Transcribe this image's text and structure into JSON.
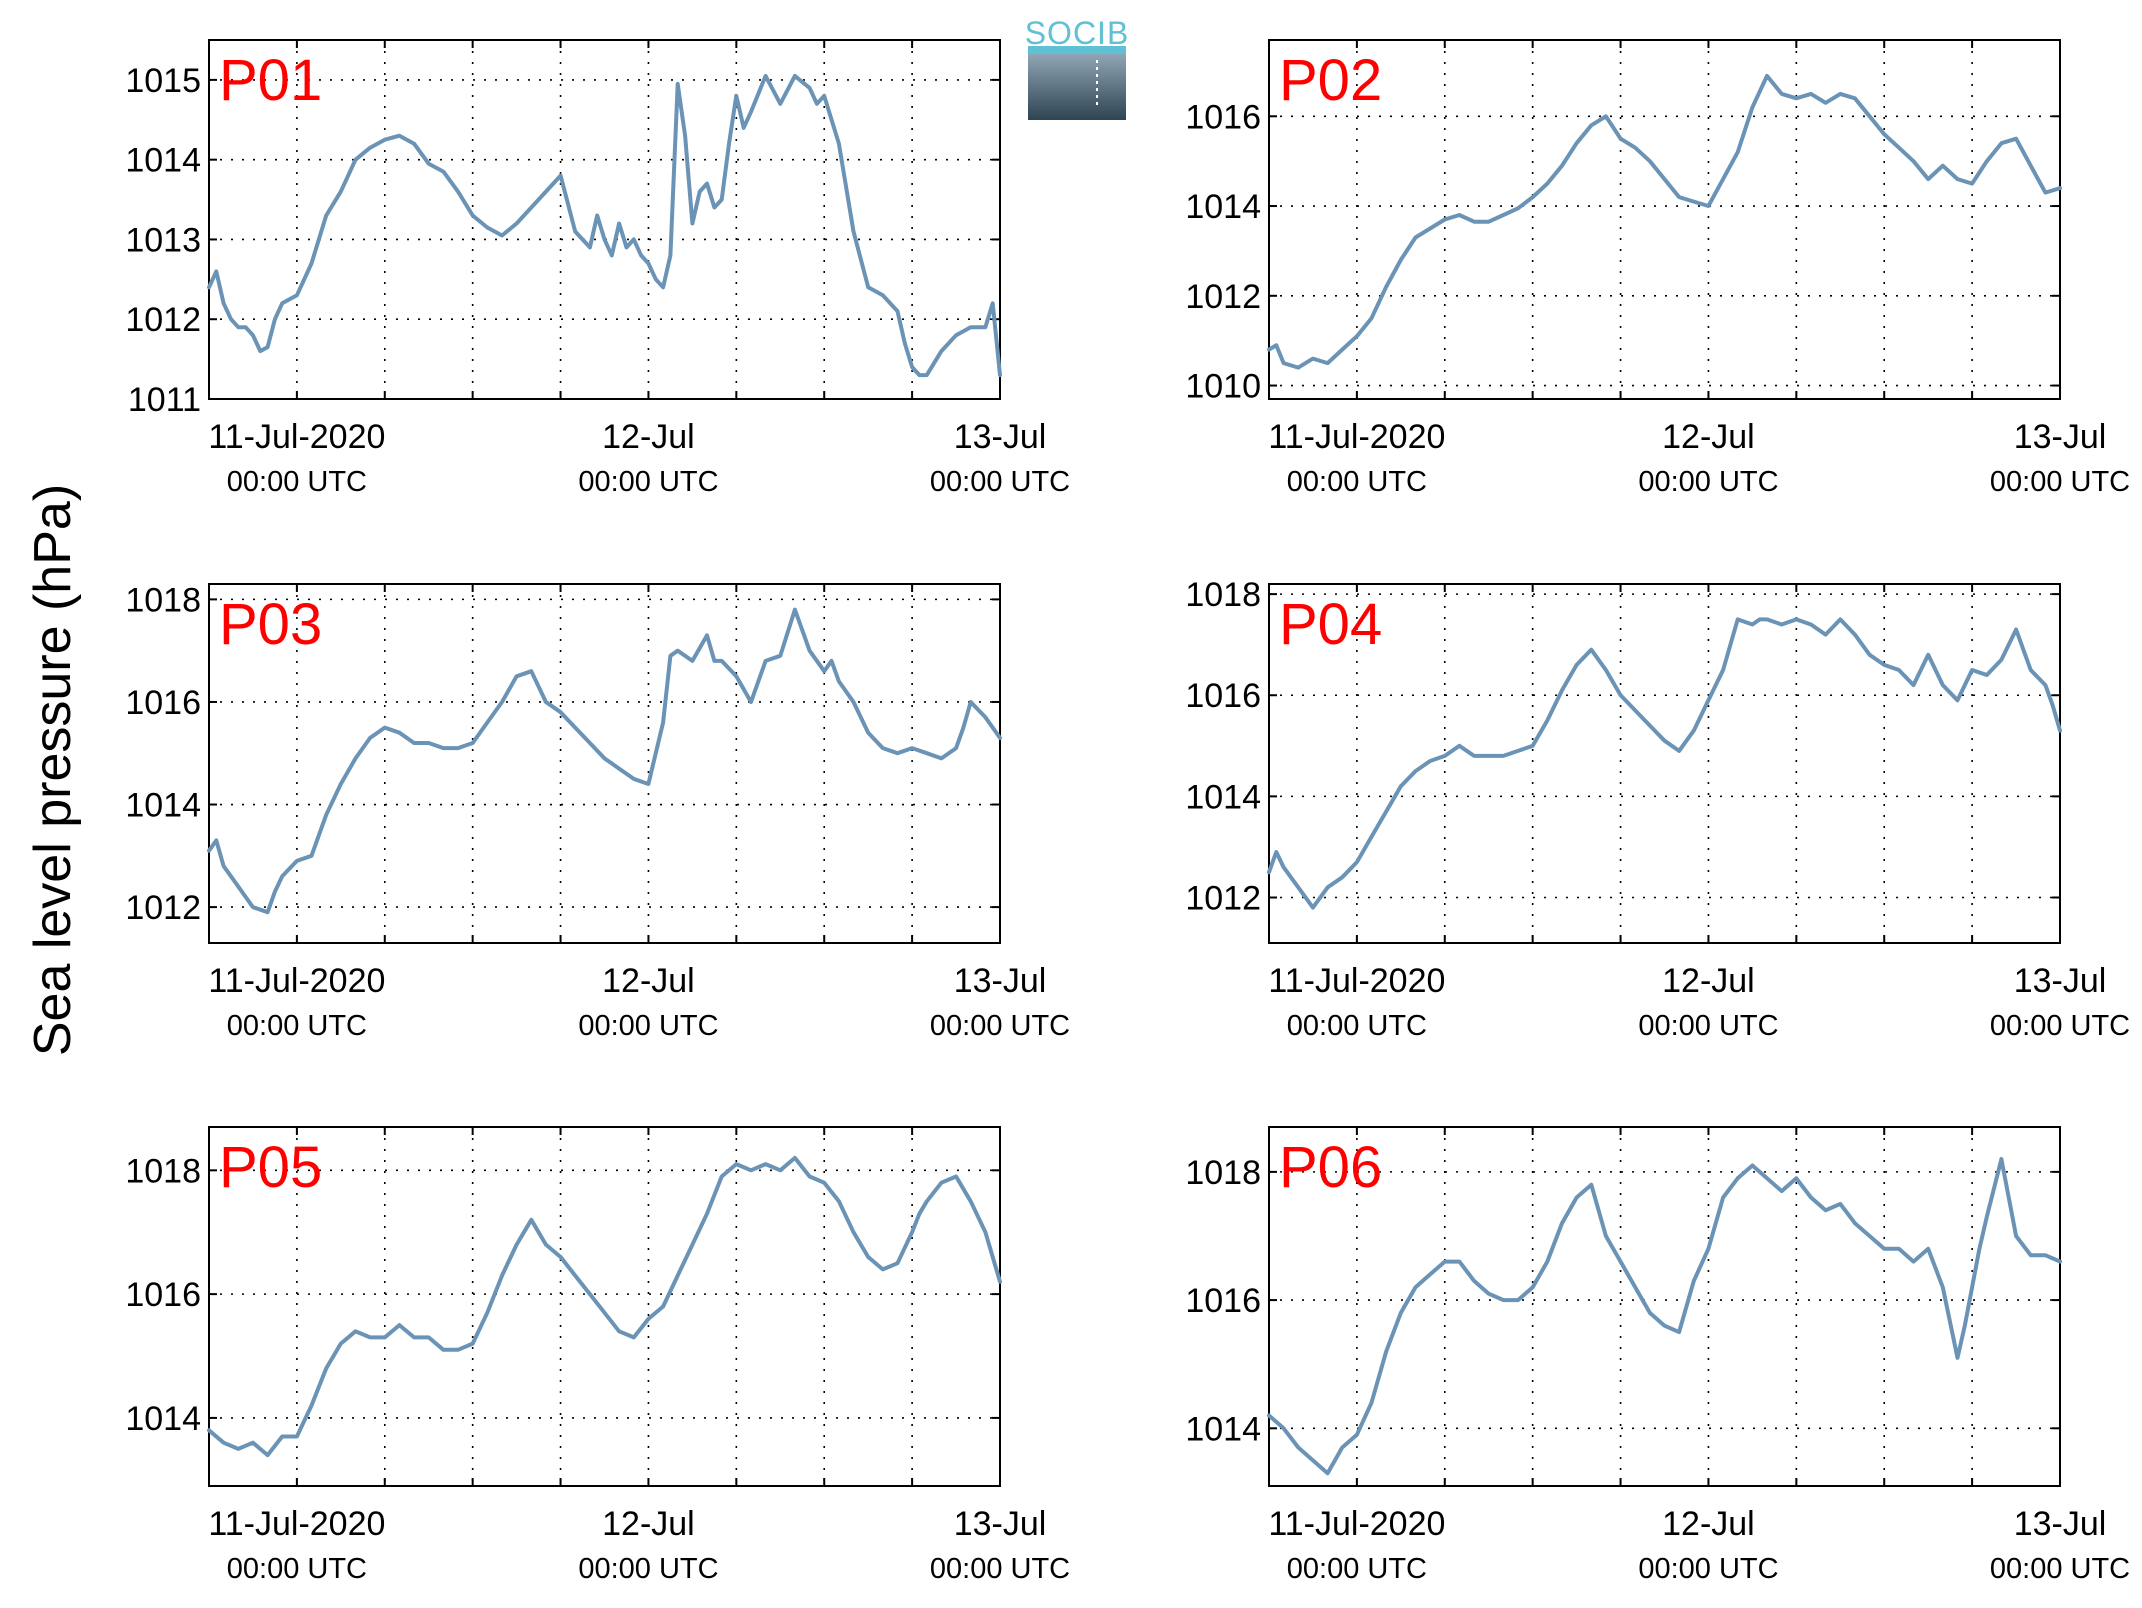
{
  "figure": {
    "ylabel": "Sea level pressure (hPa)",
    "logo_text": "SOCIB"
  },
  "colors": {
    "series": "#6b93b5",
    "panel_label": "#ff0000",
    "axis": "#000000",
    "grid": "#000000"
  },
  "chart_data": [
    {
      "type": "line",
      "panel_label": "P01",
      "x_unit": "hours since 11-Jul-2020 00:00 UTC",
      "xlim": [
        -6,
        48
      ],
      "ylim": [
        1011,
        1015.5
      ],
      "yticks": [
        1011,
        1012,
        1013,
        1014,
        1015
      ],
      "xticks": [
        0,
        24,
        48
      ],
      "xticklabels": [
        [
          "11-Jul-2020",
          "00:00 UTC"
        ],
        [
          "12-Jul",
          "00:00 UTC"
        ],
        [
          "13-Jul",
          "00:00 UTC"
        ]
      ],
      "grid": true,
      "x": [
        -6,
        -5.5,
        -5,
        -4.5,
        -4,
        -3.5,
        -3,
        -2.5,
        -2,
        -1.5,
        -1,
        0,
        1,
        2,
        3,
        4,
        5,
        6,
        7,
        8,
        9,
        10,
        11,
        12,
        13,
        14,
        15,
        16,
        17,
        18,
        19,
        20,
        20.5,
        21,
        21.5,
        22,
        22.5,
        23,
        23.5,
        24,
        24.5,
        25,
        25.5,
        26,
        26.5,
        27,
        27.5,
        28,
        28.5,
        29,
        29.5,
        30,
        30.5,
        31,
        32,
        33,
        34,
        35,
        35.5,
        36,
        37,
        38,
        39,
        40,
        41,
        41.5,
        42,
        42.5,
        43,
        44,
        45,
        46,
        47,
        47.5,
        48
      ],
      "y": [
        1012.4,
        1012.6,
        1012.2,
        1012,
        1011.9,
        1011.9,
        1011.8,
        1011.6,
        1011.65,
        1012,
        1012.2,
        1012.3,
        1012.7,
        1013.3,
        1013.6,
        1014,
        1014.15,
        1014.25,
        1014.3,
        1014.2,
        1013.95,
        1013.85,
        1013.6,
        1013.3,
        1013.15,
        1013.05,
        1013.2,
        1013.4,
        1013.6,
        1013.8,
        1013.1,
        1012.9,
        1013.3,
        1013.0,
        1012.8,
        1013.2,
        1012.9,
        1013.0,
        1012.8,
        1012.7,
        1012.5,
        1012.4,
        1012.8,
        1014.95,
        1014.3,
        1013.2,
        1013.6,
        1013.7,
        1013.4,
        1013.5,
        1014.2,
        1014.8,
        1014.4,
        1014.6,
        1015.05,
        1014.7,
        1015.05,
        1014.9,
        1014.7,
        1014.8,
        1014.2,
        1013.1,
        1012.4,
        1012.3,
        1012.1,
        1011.7,
        1011.4,
        1011.3,
        1011.3,
        1011.6,
        1011.8,
        1011.9,
        1011.9,
        1012.2,
        1011.3
      ]
    },
    {
      "type": "line",
      "panel_label": "P02",
      "x_unit": "hours since 11-Jul-2020 00:00 UTC",
      "xlim": [
        -6,
        48
      ],
      "ylim": [
        1009.7,
        1017.7
      ],
      "yticks": [
        1010,
        1012,
        1014,
        1016
      ],
      "xticks": [
        0,
        24,
        48
      ],
      "xticklabels": [
        [
          "11-Jul-2020",
          "00:00 UTC"
        ],
        [
          "12-Jul",
          "00:00 UTC"
        ],
        [
          "13-Jul",
          "00:00 UTC"
        ]
      ],
      "grid": true,
      "x": [
        -6,
        -5.5,
        -5,
        -4,
        -3,
        -2,
        -1,
        0,
        1,
        2,
        3,
        4,
        5,
        6,
        7,
        8,
        9,
        10,
        11,
        12,
        13,
        14,
        15,
        16,
        17,
        18,
        19,
        20,
        21,
        22,
        23,
        24,
        25,
        26,
        27,
        28,
        29,
        30,
        31,
        32,
        33,
        34,
        35,
        36,
        37,
        38,
        39,
        40,
        41,
        42,
        43,
        44,
        45,
        46,
        47,
        48
      ],
      "y": [
        1010.8,
        1010.9,
        1010.5,
        1010.4,
        1010.6,
        1010.5,
        1010.8,
        1011.1,
        1011.5,
        1012.2,
        1012.8,
        1013.3,
        1013.5,
        1013.7,
        1013.8,
        1013.65,
        1013.65,
        1013.8,
        1013.95,
        1014.2,
        1014.5,
        1014.9,
        1015.4,
        1015.8,
        1016.0,
        1015.5,
        1015.3,
        1015.0,
        1014.6,
        1014.2,
        1014.1,
        1014.0,
        1014.6,
        1015.2,
        1016.2,
        1016.9,
        1016.5,
        1016.4,
        1016.5,
        1016.3,
        1016.5,
        1016.4,
        1016.0,
        1015.6,
        1015.3,
        1015.0,
        1014.6,
        1014.9,
        1014.6,
        1014.5,
        1015.0,
        1015.4,
        1015.5,
        1014.9,
        1014.3,
        1014.4
      ]
    },
    {
      "type": "line",
      "panel_label": "P03",
      "x_unit": "hours since 11-Jul-2020 00:00 UTC",
      "xlim": [
        -6,
        48
      ],
      "ylim": [
        1011.3,
        1018.3
      ],
      "yticks": [
        1012,
        1014,
        1016,
        1018
      ],
      "xticks": [
        0,
        24,
        48
      ],
      "xticklabels": [
        [
          "11-Jul-2020",
          "00:00 UTC"
        ],
        [
          "12-Jul",
          "00:00 UTC"
        ],
        [
          "13-Jul",
          "00:00 UTC"
        ]
      ],
      "grid": true,
      "x": [
        -6,
        -5.5,
        -5,
        -4,
        -3,
        -2,
        -1.5,
        -1,
        0,
        1,
        2,
        3,
        4,
        5,
        6,
        7,
        8,
        9,
        10,
        11,
        12,
        13,
        14,
        15,
        16,
        17,
        18,
        19,
        20,
        21,
        22,
        23,
        24,
        25,
        25.5,
        26,
        27,
        28,
        28.5,
        29,
        30,
        31,
        32,
        33,
        34,
        35,
        36,
        36.5,
        37,
        38,
        39,
        40,
        41,
        42,
        43,
        44,
        45,
        45.5,
        46,
        47,
        48
      ],
      "y": [
        1013.1,
        1013.3,
        1012.8,
        1012.4,
        1012.0,
        1011.9,
        1012.3,
        1012.6,
        1012.9,
        1013.0,
        1013.8,
        1014.4,
        1014.9,
        1015.3,
        1015.5,
        1015.4,
        1015.2,
        1015.2,
        1015.1,
        1015.1,
        1015.2,
        1015.6,
        1016.0,
        1016.5,
        1016.6,
        1016.0,
        1015.8,
        1015.5,
        1015.2,
        1014.9,
        1014.7,
        1014.5,
        1014.4,
        1015.6,
        1016.9,
        1017.0,
        1016.8,
        1017.3,
        1016.8,
        1016.8,
        1016.5,
        1016.0,
        1016.8,
        1016.9,
        1017.8,
        1017.0,
        1016.6,
        1016.8,
        1016.4,
        1016.0,
        1015.4,
        1015.1,
        1015.0,
        1015.1,
        1015.0,
        1014.9,
        1015.1,
        1015.5,
        1016.0,
        1015.7,
        1015.3
      ]
    },
    {
      "type": "line",
      "panel_label": "P04",
      "x_unit": "hours since 11-Jul-2020 00:00 UTC",
      "xlim": [
        -6,
        48
      ],
      "ylim": [
        1011.1,
        1018.2
      ],
      "yticks": [
        1012,
        1014,
        1016,
        1018
      ],
      "xticks": [
        0,
        24,
        48
      ],
      "xticklabels": [
        [
          "11-Jul-2020",
          "00:00 UTC"
        ],
        [
          "12-Jul",
          "00:00 UTC"
        ],
        [
          "13-Jul",
          "00:00 UTC"
        ]
      ],
      "grid": true,
      "x": [
        -6,
        -5.5,
        -5,
        -4,
        -3,
        -2,
        -1,
        0,
        1,
        2,
        3,
        4,
        5,
        6,
        7,
        8,
        9,
        10,
        11,
        12,
        13,
        14,
        15,
        16,
        17,
        18,
        19,
        20,
        21,
        22,
        23,
        24,
        25,
        26,
        27,
        27.5,
        28,
        29,
        30,
        31,
        32,
        33,
        34,
        35,
        36,
        37,
        38,
        39,
        40,
        41,
        42,
        43,
        44,
        45,
        46,
        47,
        47.5,
        48
      ],
      "y": [
        1012.5,
        1012.9,
        1012.6,
        1012.2,
        1011.8,
        1012.2,
        1012.4,
        1012.7,
        1013.2,
        1013.7,
        1014.2,
        1014.5,
        1014.7,
        1014.8,
        1015.0,
        1014.8,
        1014.8,
        1014.8,
        1014.9,
        1015.0,
        1015.5,
        1016.1,
        1016.6,
        1016.9,
        1016.5,
        1016.0,
        1015.7,
        1015.4,
        1015.1,
        1014.9,
        1015.3,
        1015.9,
        1016.5,
        1017.5,
        1017.4,
        1017.5,
        1017.5,
        1017.4,
        1017.5,
        1017.4,
        1017.2,
        1017.5,
        1017.2,
        1016.8,
        1016.6,
        1016.5,
        1016.2,
        1016.8,
        1016.2,
        1015.9,
        1016.5,
        1016.4,
        1016.7,
        1017.3,
        1016.5,
        1016.2,
        1015.8,
        1015.3
      ]
    },
    {
      "type": "line",
      "panel_label": "P05",
      "x_unit": "hours since 11-Jul-2020 00:00 UTC",
      "xlim": [
        -6,
        48
      ],
      "ylim": [
        1012.9,
        1018.7
      ],
      "yticks": [
        1014,
        1016,
        1018
      ],
      "xticks": [
        0,
        24,
        48
      ],
      "xticklabels": [
        [
          "11-Jul-2020",
          "00:00 UTC"
        ],
        [
          "12-Jul",
          "00:00 UTC"
        ],
        [
          "13-Jul",
          "00:00 UTC"
        ]
      ],
      "grid": true,
      "x": [
        -6,
        -5,
        -4,
        -3,
        -2,
        -1,
        0,
        1,
        2,
        3,
        4,
        5,
        6,
        7,
        8,
        9,
        10,
        11,
        12,
        13,
        14,
        15,
        16,
        17,
        18,
        19,
        20,
        21,
        22,
        23,
        24,
        25,
        26,
        27,
        28,
        29,
        30,
        31,
        32,
        33,
        34,
        35,
        36,
        37,
        38,
        39,
        40,
        41,
        42,
        42.5,
        43,
        44,
        45,
        46,
        47,
        47.5,
        48
      ],
      "y": [
        1013.8,
        1013.6,
        1013.5,
        1013.6,
        1013.4,
        1013.7,
        1013.7,
        1014.2,
        1014.8,
        1015.2,
        1015.4,
        1015.3,
        1015.3,
        1015.5,
        1015.3,
        1015.3,
        1015.1,
        1015.1,
        1015.2,
        1015.7,
        1016.3,
        1016.8,
        1017.2,
        1016.8,
        1016.6,
        1016.3,
        1016.0,
        1015.7,
        1015.4,
        1015.3,
        1015.6,
        1015.8,
        1016.3,
        1016.8,
        1017.3,
        1017.9,
        1018.1,
        1018.0,
        1018.1,
        1018.0,
        1018.2,
        1017.9,
        1017.8,
        1017.5,
        1017.0,
        1016.6,
        1016.4,
        1016.5,
        1017.0,
        1017.3,
        1017.5,
        1017.8,
        1017.9,
        1017.5,
        1017.0,
        1016.6,
        1016.2
      ]
    },
    {
      "type": "line",
      "panel_label": "P06",
      "x_unit": "hours since 11-Jul-2020 00:00 UTC",
      "xlim": [
        -6,
        48
      ],
      "ylim": [
        1013.1,
        1018.7
      ],
      "yticks": [
        1014,
        1016,
        1018
      ],
      "xticks": [
        0,
        24,
        48
      ],
      "xticklabels": [
        [
          "11-Jul-2020",
          "00:00 UTC"
        ],
        [
          "12-Jul",
          "00:00 UTC"
        ],
        [
          "13-Jul",
          "00:00 UTC"
        ]
      ],
      "grid": true,
      "x": [
        -6,
        -5,
        -4,
        -3,
        -2,
        -1,
        0,
        1,
        2,
        3,
        4,
        5,
        6,
        7,
        8,
        9,
        10,
        11,
        12,
        13,
        14,
        15,
        16,
        17,
        18,
        19,
        20,
        21,
        22,
        23,
        24,
        25,
        26,
        27,
        28,
        29,
        30,
        31,
        32,
        33,
        34,
        35,
        36,
        37,
        38,
        39,
        40,
        41,
        41.5,
        42,
        42.5,
        43,
        44,
        45,
        46,
        47,
        48
      ],
      "y": [
        1014.2,
        1014.0,
        1013.7,
        1013.5,
        1013.3,
        1013.7,
        1013.9,
        1014.4,
        1015.2,
        1015.8,
        1016.2,
        1016.4,
        1016.6,
        1016.6,
        1016.3,
        1016.1,
        1016.0,
        1016.0,
        1016.2,
        1016.6,
        1017.2,
        1017.6,
        1017.8,
        1017.0,
        1016.6,
        1016.2,
        1015.8,
        1015.6,
        1015.5,
        1016.3,
        1016.8,
        1017.6,
        1017.9,
        1018.1,
        1017.9,
        1017.7,
        1017.9,
        1017.6,
        1017.4,
        1017.5,
        1017.2,
        1017.0,
        1016.8,
        1016.8,
        1016.6,
        1016.8,
        1016.2,
        1015.1,
        1015.6,
        1016.2,
        1016.8,
        1017.3,
        1018.2,
        1017.0,
        1016.7,
        1016.7,
        1016.6
      ]
    }
  ]
}
